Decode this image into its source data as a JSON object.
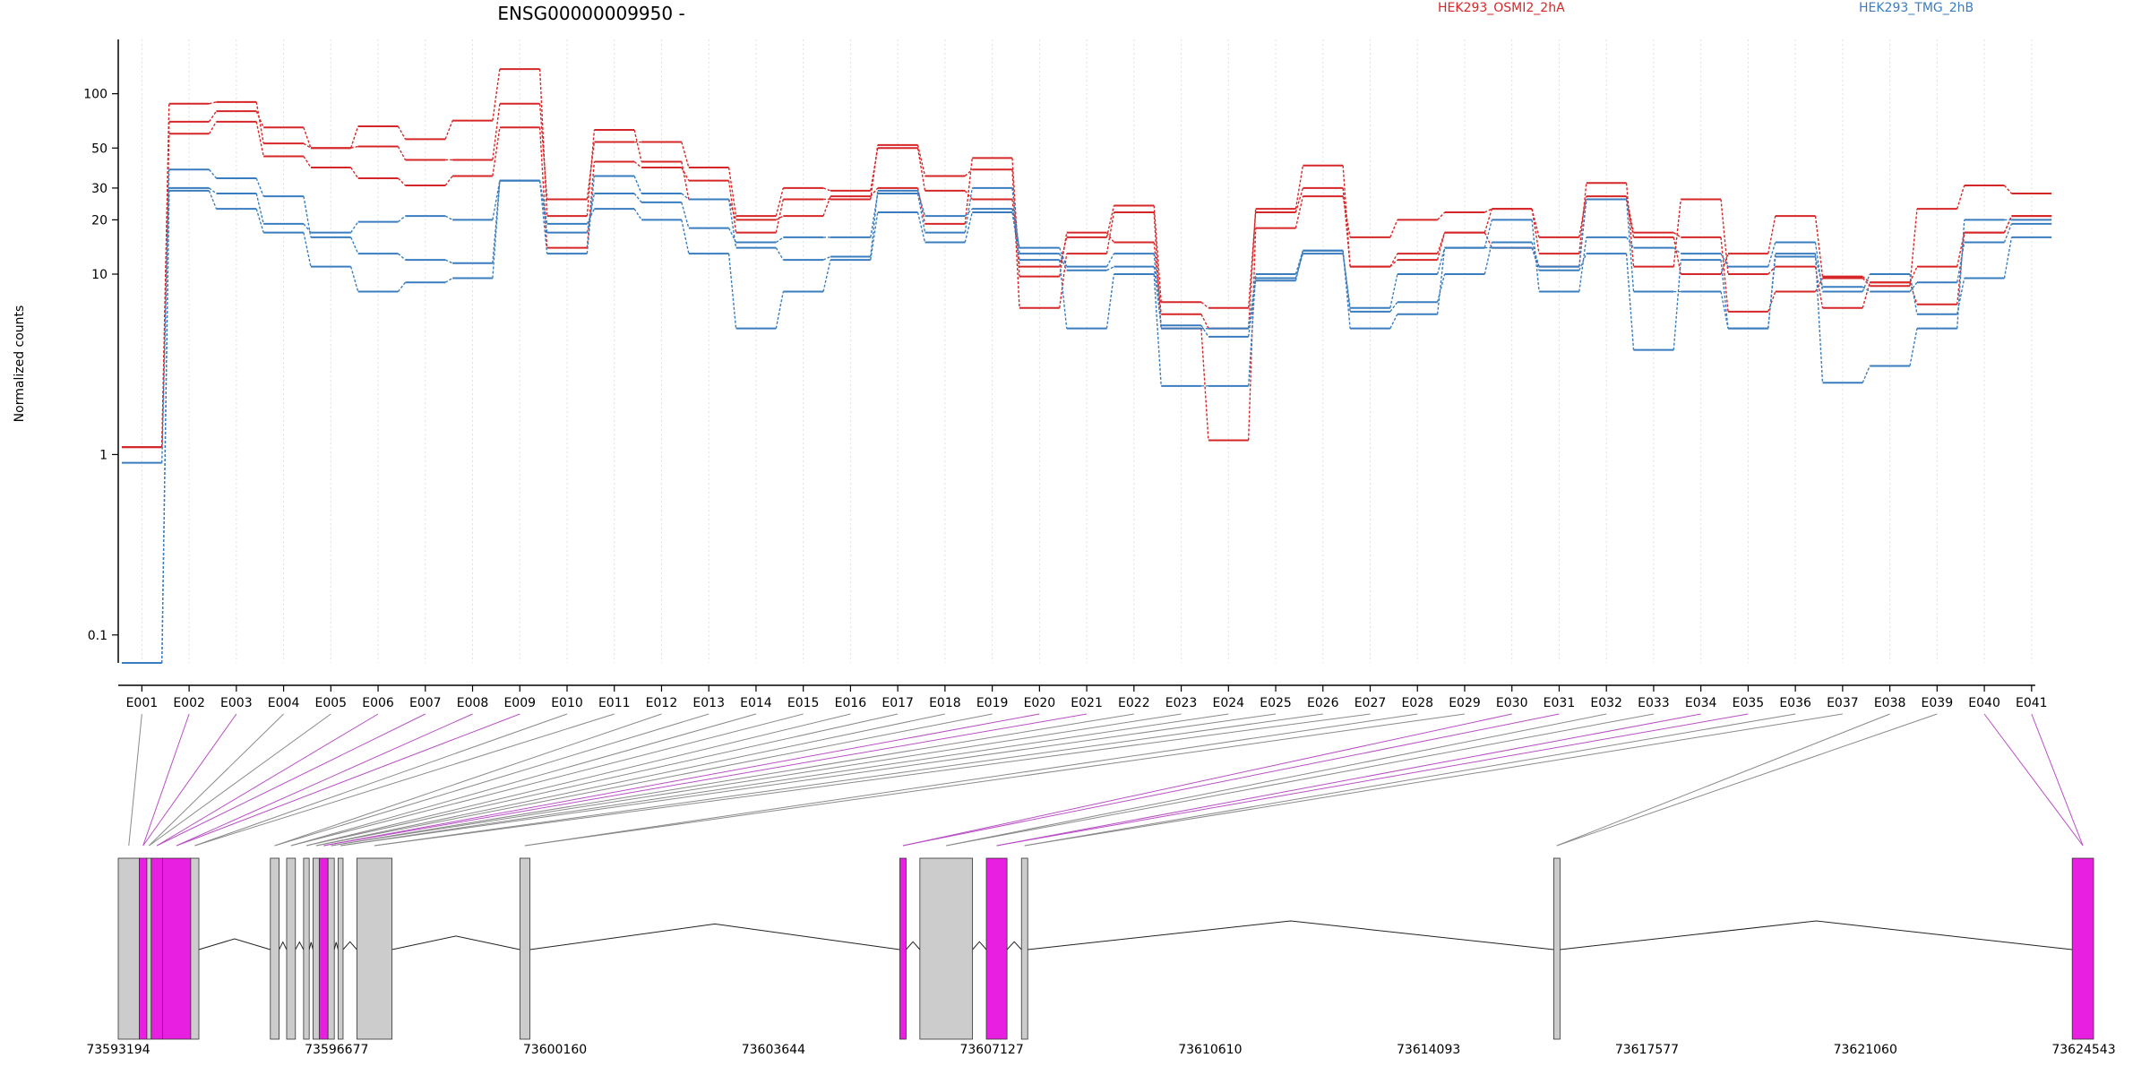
{
  "chart_data": {
    "type": "line",
    "title": "ENSG00000009950 -",
    "ylabel": "Normalized counts",
    "xlabel": "",
    "yscale": "log",
    "ylim": [
      0.07,
      200
    ],
    "yticks": [
      {
        "value": 0.1,
        "label": "0.1"
      },
      {
        "value": 1,
        "label": "1"
      },
      {
        "value": 10,
        "label": "10"
      },
      {
        "value": 20,
        "label": "20"
      },
      {
        "value": 30,
        "label": "30"
      },
      {
        "value": 50,
        "label": "50"
      },
      {
        "value": 100,
        "label": "100"
      }
    ],
    "grid": "vertical dotted lines at each exon bin",
    "legend_position": "top",
    "categories": [
      "E001",
      "E002",
      "E003",
      "E004",
      "E005",
      "E006",
      "E007",
      "E008",
      "E009",
      "E010",
      "E011",
      "E012",
      "E013",
      "E014",
      "E015",
      "E016",
      "E017",
      "E018",
      "E019",
      "E020",
      "E021",
      "E022",
      "E023",
      "E024",
      "E025",
      "E026",
      "E027",
      "E028",
      "E029",
      "E030",
      "E031",
      "E032",
      "E033",
      "E034",
      "E035",
      "E036",
      "E037",
      "E038",
      "E039",
      "E040",
      "E041"
    ],
    "legend": [
      {
        "label": "HEK293_OSMI2_2hA",
        "color": "#d62728"
      },
      {
        "label": "HEK293_TMG_2hB",
        "color": "#3a7dbf"
      }
    ],
    "series": [
      {
        "group": 0,
        "values": [
          1.1,
          60,
          70,
          45,
          39,
          34,
          31,
          35,
          65,
          14,
          42,
          39,
          33,
          17,
          26,
          26,
          52,
          35,
          38,
          6.5,
          13,
          22,
          5,
          1.2,
          18,
          27,
          16,
          20,
          22,
          23,
          13,
          32,
          11,
          26,
          10,
          11,
          6.5,
          9,
          6.8,
          17,
          21
        ]
      },
      {
        "group": 0,
        "values": [
          1.1,
          70,
          80,
          65,
          50,
          51,
          43,
          43,
          88,
          26,
          54,
          54,
          39,
          21,
          30,
          29,
          50,
          29,
          26,
          11,
          16,
          24,
          7,
          6.5,
          22,
          30,
          11,
          13,
          17,
          14,
          11,
          26,
          16,
          10,
          13,
          21,
          9.7,
          9,
          11,
          17,
          21
        ]
      },
      {
        "group": 0,
        "values": [
          1.1,
          88,
          90,
          53,
          50,
          66,
          56,
          71,
          137,
          21,
          63,
          42,
          26,
          20,
          21,
          27,
          30,
          19,
          44,
          9.7,
          17,
          15,
          6,
          5,
          23,
          40,
          11,
          12,
          17,
          23,
          16,
          27,
          17,
          16,
          6.2,
          8,
          9.5,
          8.6,
          23,
          31,
          28
        ]
      },
      {
        "group": 1,
        "values": [
          0.9,
          38,
          34,
          27,
          16,
          13,
          12,
          11.5,
          33,
          13,
          35,
          28,
          26,
          14,
          12,
          12.5,
          29,
          21,
          23,
          14,
          11,
          13,
          5,
          5,
          9.5,
          13,
          6.5,
          10,
          14,
          20,
          8,
          16,
          14,
          13,
          11,
          15,
          8,
          10,
          6,
          9.5,
          16
        ]
      },
      {
        "group": 1,
        "values": [
          0.07,
          30,
          28,
          19,
          17,
          19.5,
          21,
          20,
          33,
          17,
          28,
          25,
          18,
          15,
          16,
          16,
          28,
          17,
          30,
          13,
          10.5,
          11,
          5.2,
          4.5,
          9.2,
          13.5,
          6.2,
          7,
          10,
          15,
          11,
          26,
          8,
          8,
          5,
          12.5,
          8.5,
          8,
          9,
          15,
          19
        ]
      },
      {
        "group": 1,
        "values": [
          0.07,
          29,
          23,
          17,
          11,
          8,
          9,
          9.5,
          33,
          19,
          23,
          20,
          13,
          5,
          8,
          12,
          22,
          15,
          22,
          12,
          5,
          10,
          2.4,
          2.4,
          10,
          13.5,
          5,
          6,
          14,
          14,
          10.5,
          13,
          3.8,
          12,
          5,
          13,
          2.5,
          3.1,
          5,
          20,
          20
        ]
      }
    ],
    "gene_model": {
      "coord_labels": [
        "73593194",
        "73596677",
        "73600160",
        "73603644",
        "73607127",
        "73610610",
        "73614093",
        "73617577",
        "73621060",
        "73624543"
      ],
      "exons": [
        {
          "start": 73593194,
          "end": 73593530,
          "fill": "#cccccc"
        },
        {
          "start": 73593530,
          "end": 73593650,
          "fill": "#e81ee0"
        },
        {
          "start": 73593650,
          "end": 73593720,
          "fill": "#cccccc"
        },
        {
          "start": 73593720,
          "end": 73593900,
          "fill": "#e81ee0"
        },
        {
          "start": 73593900,
          "end": 73594350,
          "fill": "#e81ee0"
        },
        {
          "start": 73594350,
          "end": 73594480,
          "fill": "#cccccc"
        },
        {
          "start": 73595620,
          "end": 73595760,
          "fill": "#cccccc"
        },
        {
          "start": 73595880,
          "end": 73596020,
          "fill": "#cccccc"
        },
        {
          "start": 73596150,
          "end": 73596240,
          "fill": "#cccccc"
        },
        {
          "start": 73596300,
          "end": 73596400,
          "fill": "#cccccc"
        },
        {
          "start": 73596400,
          "end": 73596540,
          "fill": "#e81ee0"
        },
        {
          "start": 73596540,
          "end": 73596640,
          "fill": "#cccccc"
        },
        {
          "start": 73596700,
          "end": 73596780,
          "fill": "#cccccc"
        },
        {
          "start": 73597000,
          "end": 73597560,
          "fill": "#cccccc"
        },
        {
          "start": 73599600,
          "end": 73599760,
          "fill": "#cccccc"
        },
        {
          "start": 73605660,
          "end": 73605760,
          "fill": "#e81ee0"
        },
        {
          "start": 73605980,
          "end": 73606820,
          "fill": "#cccccc"
        },
        {
          "start": 73607040,
          "end": 73607370,
          "fill": "#e81ee0"
        },
        {
          "start": 73607600,
          "end": 73607700,
          "fill": "#cccccc"
        },
        {
          "start": 73616090,
          "end": 73616190,
          "fill": "#cccccc"
        },
        {
          "start": 73624360,
          "end": 73624700,
          "fill": "#e81ee0"
        }
      ]
    }
  }
}
